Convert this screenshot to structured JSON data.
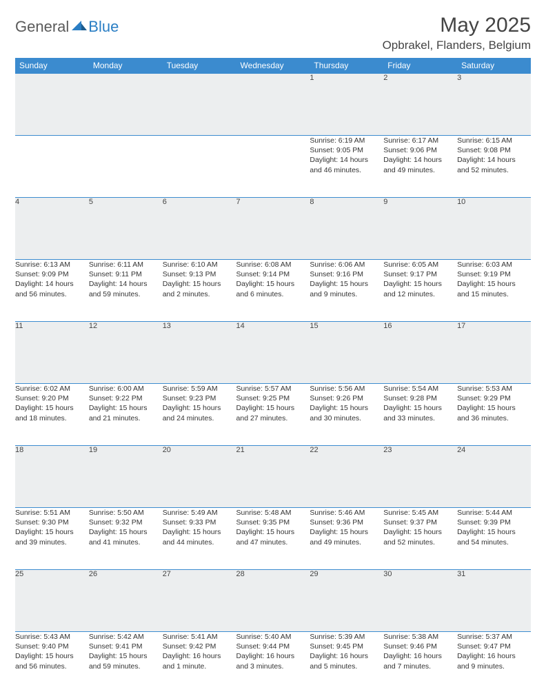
{
  "logo": {
    "general": "General",
    "blue": "Blue"
  },
  "title": "May 2025",
  "location": "Opbrakel, Flanders, Belgium",
  "colors": {
    "header_bg": "#3b8bcf",
    "header_text": "#ffffff",
    "daynum_bg": "#eceeef",
    "border": "#3b8bcf",
    "logo_blue": "#2a7ec4",
    "logo_gray": "#5a5a5a",
    "body_text": "#333333"
  },
  "weekdays": [
    "Sunday",
    "Monday",
    "Tuesday",
    "Wednesday",
    "Thursday",
    "Friday",
    "Saturday"
  ],
  "weeks": [
    [
      null,
      null,
      null,
      null,
      {
        "d": "1",
        "sunrise": "6:19 AM",
        "sunset": "9:05 PM",
        "day1": "Daylight: 14 hours",
        "day2": "and 46 minutes."
      },
      {
        "d": "2",
        "sunrise": "6:17 AM",
        "sunset": "9:06 PM",
        "day1": "Daylight: 14 hours",
        "day2": "and 49 minutes."
      },
      {
        "d": "3",
        "sunrise": "6:15 AM",
        "sunset": "9:08 PM",
        "day1": "Daylight: 14 hours",
        "day2": "and 52 minutes."
      }
    ],
    [
      {
        "d": "4",
        "sunrise": "6:13 AM",
        "sunset": "9:09 PM",
        "day1": "Daylight: 14 hours",
        "day2": "and 56 minutes."
      },
      {
        "d": "5",
        "sunrise": "6:11 AM",
        "sunset": "9:11 PM",
        "day1": "Daylight: 14 hours",
        "day2": "and 59 minutes."
      },
      {
        "d": "6",
        "sunrise": "6:10 AM",
        "sunset": "9:13 PM",
        "day1": "Daylight: 15 hours",
        "day2": "and 2 minutes."
      },
      {
        "d": "7",
        "sunrise": "6:08 AM",
        "sunset": "9:14 PM",
        "day1": "Daylight: 15 hours",
        "day2": "and 6 minutes."
      },
      {
        "d": "8",
        "sunrise": "6:06 AM",
        "sunset": "9:16 PM",
        "day1": "Daylight: 15 hours",
        "day2": "and 9 minutes."
      },
      {
        "d": "9",
        "sunrise": "6:05 AM",
        "sunset": "9:17 PM",
        "day1": "Daylight: 15 hours",
        "day2": "and 12 minutes."
      },
      {
        "d": "10",
        "sunrise": "6:03 AM",
        "sunset": "9:19 PM",
        "day1": "Daylight: 15 hours",
        "day2": "and 15 minutes."
      }
    ],
    [
      {
        "d": "11",
        "sunrise": "6:02 AM",
        "sunset": "9:20 PM",
        "day1": "Daylight: 15 hours",
        "day2": "and 18 minutes."
      },
      {
        "d": "12",
        "sunrise": "6:00 AM",
        "sunset": "9:22 PM",
        "day1": "Daylight: 15 hours",
        "day2": "and 21 minutes."
      },
      {
        "d": "13",
        "sunrise": "5:59 AM",
        "sunset": "9:23 PM",
        "day1": "Daylight: 15 hours",
        "day2": "and 24 minutes."
      },
      {
        "d": "14",
        "sunrise": "5:57 AM",
        "sunset": "9:25 PM",
        "day1": "Daylight: 15 hours",
        "day2": "and 27 minutes."
      },
      {
        "d": "15",
        "sunrise": "5:56 AM",
        "sunset": "9:26 PM",
        "day1": "Daylight: 15 hours",
        "day2": "and 30 minutes."
      },
      {
        "d": "16",
        "sunrise": "5:54 AM",
        "sunset": "9:28 PM",
        "day1": "Daylight: 15 hours",
        "day2": "and 33 minutes."
      },
      {
        "d": "17",
        "sunrise": "5:53 AM",
        "sunset": "9:29 PM",
        "day1": "Daylight: 15 hours",
        "day2": "and 36 minutes."
      }
    ],
    [
      {
        "d": "18",
        "sunrise": "5:51 AM",
        "sunset": "9:30 PM",
        "day1": "Daylight: 15 hours",
        "day2": "and 39 minutes."
      },
      {
        "d": "19",
        "sunrise": "5:50 AM",
        "sunset": "9:32 PM",
        "day1": "Daylight: 15 hours",
        "day2": "and 41 minutes."
      },
      {
        "d": "20",
        "sunrise": "5:49 AM",
        "sunset": "9:33 PM",
        "day1": "Daylight: 15 hours",
        "day2": "and 44 minutes."
      },
      {
        "d": "21",
        "sunrise": "5:48 AM",
        "sunset": "9:35 PM",
        "day1": "Daylight: 15 hours",
        "day2": "and 47 minutes."
      },
      {
        "d": "22",
        "sunrise": "5:46 AM",
        "sunset": "9:36 PM",
        "day1": "Daylight: 15 hours",
        "day2": "and 49 minutes."
      },
      {
        "d": "23",
        "sunrise": "5:45 AM",
        "sunset": "9:37 PM",
        "day1": "Daylight: 15 hours",
        "day2": "and 52 minutes."
      },
      {
        "d": "24",
        "sunrise": "5:44 AM",
        "sunset": "9:39 PM",
        "day1": "Daylight: 15 hours",
        "day2": "and 54 minutes."
      }
    ],
    [
      {
        "d": "25",
        "sunrise": "5:43 AM",
        "sunset": "9:40 PM",
        "day1": "Daylight: 15 hours",
        "day2": "and 56 minutes."
      },
      {
        "d": "26",
        "sunrise": "5:42 AM",
        "sunset": "9:41 PM",
        "day1": "Daylight: 15 hours",
        "day2": "and 59 minutes."
      },
      {
        "d": "27",
        "sunrise": "5:41 AM",
        "sunset": "9:42 PM",
        "day1": "Daylight: 16 hours",
        "day2": "and 1 minute."
      },
      {
        "d": "28",
        "sunrise": "5:40 AM",
        "sunset": "9:44 PM",
        "day1": "Daylight: 16 hours",
        "day2": "and 3 minutes."
      },
      {
        "d": "29",
        "sunrise": "5:39 AM",
        "sunset": "9:45 PM",
        "day1": "Daylight: 16 hours",
        "day2": "and 5 minutes."
      },
      {
        "d": "30",
        "sunrise": "5:38 AM",
        "sunset": "9:46 PM",
        "day1": "Daylight: 16 hours",
        "day2": "and 7 minutes."
      },
      {
        "d": "31",
        "sunrise": "5:37 AM",
        "sunset": "9:47 PM",
        "day1": "Daylight: 16 hours",
        "day2": "and 9 minutes."
      }
    ]
  ],
  "labels": {
    "sunrise": "Sunrise: ",
    "sunset": "Sunset: "
  }
}
